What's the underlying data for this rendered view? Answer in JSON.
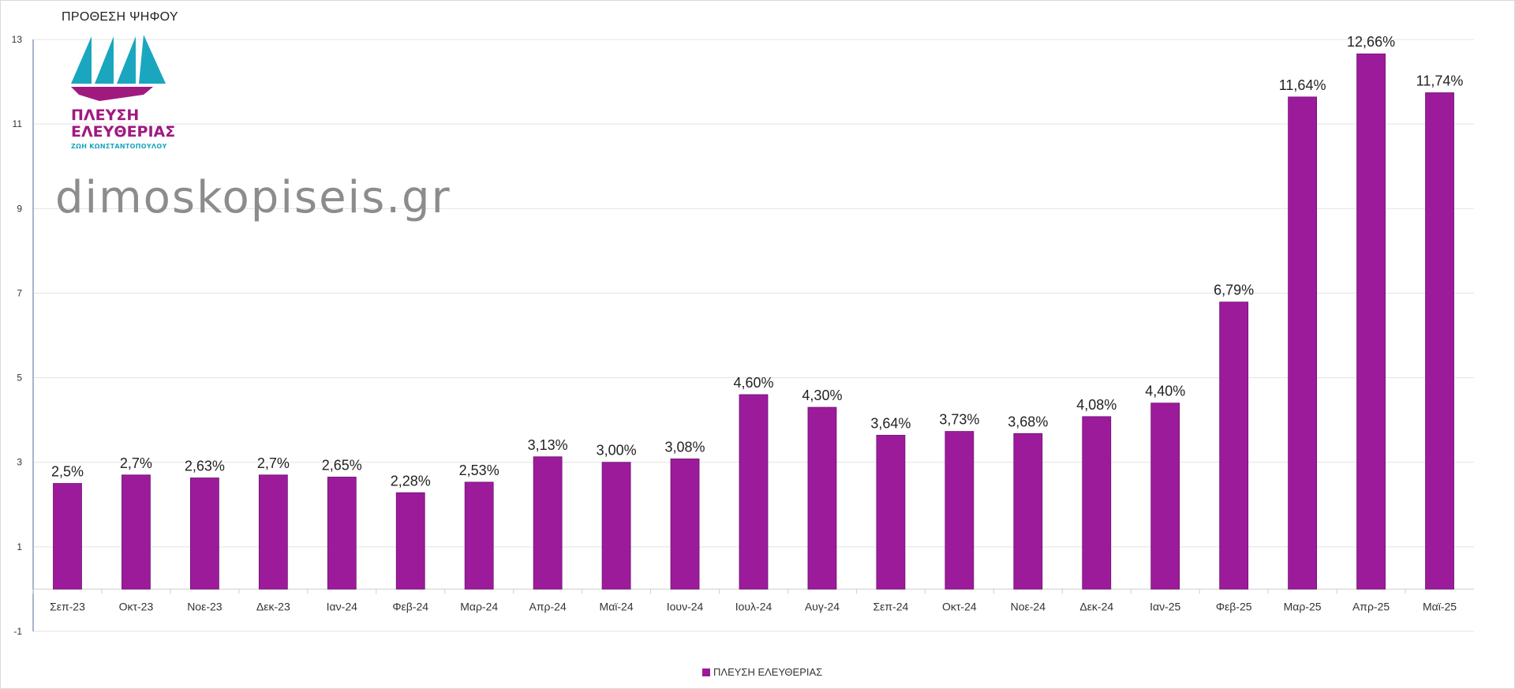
{
  "page_title": "ΠΡΟΘΕΣΗ ΨΗΦΟΥ",
  "watermark": "dimoskopiseis.gr",
  "logo": {
    "line1": "ΠΛΕΥΣΗ",
    "line2": "ΕΛΕΥΘΕΡΙΑΣ",
    "subtitle": "ΖΩΗ ΚΩΝΣΤΑΝΤΟΠΟΥΛΟΥ",
    "colors": {
      "sails": "#1aa6bf",
      "hull": "#a0197f"
    }
  },
  "legend": {
    "label": "ΠΛΕΥΣΗ ΕΛΕΥΘΕΡΙΑΣ"
  },
  "chart_data": {
    "type": "bar",
    "title": "",
    "xlabel": "",
    "ylabel": "",
    "ylim": [
      -1,
      13
    ],
    "yticks": [
      -1,
      1,
      3,
      5,
      7,
      9,
      11,
      13
    ],
    "grid": true,
    "legend_position": "bottom",
    "bar_color": "#9c1b9b",
    "categories": [
      "Σεπ-23",
      "Οκτ-23",
      "Νοε-23",
      "Δεκ-23",
      "Ιαν-24",
      "Φεβ-24",
      "Μαρ-24",
      "Απρ-24",
      "Μαϊ-24",
      "Ιουν-24",
      "Ιουλ-24",
      "Αυγ-24",
      "Σεπ-24",
      "Οκτ-24",
      "Νοε-24",
      "Δεκ-24",
      "Ιαν-25",
      "Φεβ-25",
      "Μαρ-25",
      "Απρ-25",
      "Μαϊ-25"
    ],
    "series": [
      {
        "name": "ΠΛΕΥΣΗ ΕΛΕΥΘΕΡΙΑΣ",
        "values": [
          2.5,
          2.7,
          2.63,
          2.7,
          2.65,
          2.28,
          2.53,
          3.13,
          3.0,
          3.08,
          4.6,
          4.3,
          3.64,
          3.73,
          3.68,
          4.08,
          4.4,
          6.79,
          11.64,
          12.66,
          11.74
        ],
        "labels": [
          "2,5%",
          "2,7%",
          "2,63%",
          "2,7%",
          "2,65%",
          "2,28%",
          "2,53%",
          "3,13%",
          "3,00%",
          "3,08%",
          "4,60%",
          "4,30%",
          "3,64%",
          "3,73%",
          "3,68%",
          "4,08%",
          "4,40%",
          "6,79%",
          "11,64%",
          "12,66%",
          "11,74%"
        ]
      }
    ]
  }
}
